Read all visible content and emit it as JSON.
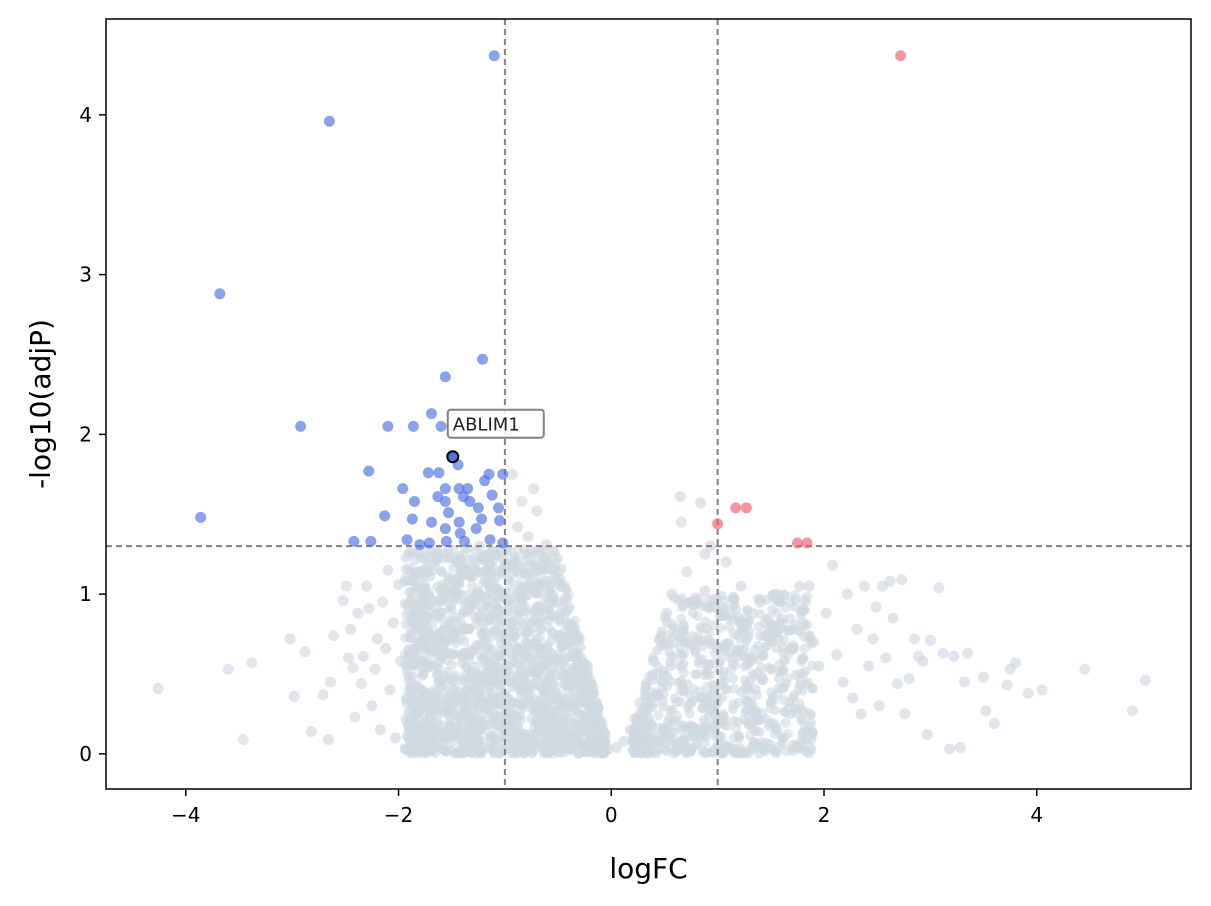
{
  "chart_data": {
    "type": "scatter",
    "title": "",
    "xlabel": "logFC",
    "ylabel": "-log10(adjP)",
    "xlim": [
      -4.75,
      5.45
    ],
    "ylim": [
      -0.22,
      4.6
    ],
    "xticks": [
      -4,
      -2,
      0,
      2,
      4
    ],
    "xtick_labels": [
      "−4",
      "−2",
      "0",
      "2",
      "4"
    ],
    "yticks": [
      0,
      1,
      2,
      3,
      4
    ],
    "ytick_labels": [
      "0",
      "1",
      "2",
      "3",
      "4"
    ],
    "grid": false,
    "thresholds": {
      "logFC": [
        -1,
        1
      ],
      "neg_log10_adjP": 1.3
    },
    "colors": {
      "up": "#f25a6e",
      "down": "#4f6ee0",
      "ns": "#cfd8e1",
      "threshold_line": "#808080"
    },
    "series": [
      {
        "name": "",
        "color": "#f25a6e",
        "points": [
          [
            2.72,
            4.37
          ],
          [
            1.0,
            1.44
          ],
          [
            1.17,
            1.54
          ],
          [
            1.27,
            1.54
          ],
          [
            1.75,
            1.32
          ],
          [
            1.84,
            1.32
          ]
        ]
      },
      {
        "name": "",
        "color": "#4f6ee0",
        "points": [
          [
            -1.1,
            4.37
          ],
          [
            -2.65,
            3.96
          ],
          [
            -3.68,
            2.88
          ],
          [
            -1.21,
            2.47
          ],
          [
            -1.56,
            2.36
          ],
          [
            -2.92,
            2.05
          ],
          [
            -2.1,
            2.05
          ],
          [
            -1.86,
            2.05
          ],
          [
            -1.6,
            2.05
          ],
          [
            -1.69,
            2.13
          ],
          [
            -1.49,
            1.86
          ],
          [
            -1.44,
            1.81
          ],
          [
            -2.28,
            1.77
          ],
          [
            -1.72,
            1.76
          ],
          [
            -1.62,
            1.76
          ],
          [
            -1.15,
            1.75
          ],
          [
            -1.02,
            1.75
          ],
          [
            -1.19,
            1.71
          ],
          [
            -1.56,
            1.66
          ],
          [
            -1.43,
            1.66
          ],
          [
            -1.35,
            1.66
          ],
          [
            -1.96,
            1.66
          ],
          [
            -1.12,
            1.62
          ],
          [
            -1.63,
            1.61
          ],
          [
            -1.39,
            1.61
          ],
          [
            -1.56,
            1.58
          ],
          [
            -1.85,
            1.58
          ],
          [
            -1.33,
            1.58
          ],
          [
            -1.25,
            1.54
          ],
          [
            -1.06,
            1.54
          ],
          [
            -3.86,
            1.48
          ],
          [
            -2.13,
            1.49
          ],
          [
            -1.53,
            1.51
          ],
          [
            -1.22,
            1.47
          ],
          [
            -1.05,
            1.46
          ],
          [
            -1.87,
            1.47
          ],
          [
            -1.69,
            1.45
          ],
          [
            -1.43,
            1.45
          ],
          [
            -1.56,
            1.41
          ],
          [
            -1.27,
            1.41
          ],
          [
            -1.42,
            1.38
          ],
          [
            -2.42,
            1.33
          ],
          [
            -2.26,
            1.33
          ],
          [
            -1.92,
            1.34
          ],
          [
            -1.71,
            1.32
          ],
          [
            -1.55,
            1.33
          ],
          [
            -1.38,
            1.33
          ],
          [
            -1.14,
            1.34
          ],
          [
            -1.02,
            1.32
          ],
          [
            -1.8,
            1.31
          ]
        ]
      }
    ],
    "ns_points": [
      [
        -4.26,
        0.41
      ],
      [
        -3.6,
        0.53
      ],
      [
        -3.38,
        0.57
      ],
      [
        -3.46,
        0.09
      ],
      [
        -3.02,
        0.72
      ],
      [
        -2.98,
        0.36
      ],
      [
        -2.88,
        0.64
      ],
      [
        -2.82,
        0.14
      ],
      [
        -2.71,
        0.37
      ],
      [
        -2.66,
        0.09
      ],
      [
        -2.64,
        0.45
      ],
      [
        -2.61,
        0.74
      ],
      [
        -2.52,
        0.96
      ],
      [
        -2.49,
        1.05
      ],
      [
        -2.47,
        0.6
      ],
      [
        -2.45,
        0.78
      ],
      [
        -2.43,
        0.54
      ],
      [
        -2.41,
        0.23
      ],
      [
        -2.38,
        0.88
      ],
      [
        -2.35,
        0.44
      ],
      [
        -2.33,
        0.61
      ],
      [
        -2.3,
        1.05
      ],
      [
        -2.28,
        0.91
      ],
      [
        -2.25,
        0.3
      ],
      [
        -2.22,
        0.53
      ],
      [
        -2.2,
        0.72
      ],
      [
        -2.17,
        0.15
      ],
      [
        -2.15,
        0.95
      ],
      [
        -2.12,
        0.66
      ],
      [
        -2.1,
        1.15
      ],
      [
        -2.08,
        0.4
      ],
      [
        -2.05,
        0.82
      ],
      [
        -2.03,
        0.1
      ],
      [
        -2.0,
        1.06
      ],
      [
        -1.98,
        0.58
      ],
      [
        -1.35,
        1.29
      ],
      [
        -1.24,
        1.3
      ],
      [
        -0.98,
        1.27
      ],
      [
        -0.93,
        1.75
      ],
      [
        -0.88,
        1.42
      ],
      [
        -0.84,
        1.58
      ],
      [
        -0.78,
        1.36
      ],
      [
        -0.73,
        1.66
      ],
      [
        -0.7,
        1.52
      ],
      [
        -0.61,
        1.31
      ],
      [
        -0.55,
        1.27
      ],
      [
        -0.48,
        1.05
      ],
      [
        -0.42,
        0.82
      ],
      [
        -0.37,
        0.61
      ],
      [
        -0.32,
        0.53
      ],
      [
        -0.28,
        0.47
      ],
      [
        -0.24,
        0.39
      ],
      [
        -0.2,
        0.3
      ],
      [
        -0.15,
        0.21
      ],
      [
        -0.11,
        0.14
      ],
      [
        -0.07,
        0.08
      ],
      [
        -0.03,
        0.03
      ],
      [
        0.05,
        0.04
      ],
      [
        0.12,
        0.08
      ],
      [
        0.18,
        0.15
      ],
      [
        0.22,
        0.22
      ],
      [
        0.27,
        0.32
      ],
      [
        0.33,
        0.44
      ],
      [
        0.4,
        0.58
      ],
      [
        0.46,
        0.72
      ],
      [
        0.52,
        0.88
      ],
      [
        0.57,
        1.0
      ],
      [
        0.65,
        1.61
      ],
      [
        0.84,
        1.57
      ],
      [
        0.66,
        1.45
      ],
      [
        0.88,
        1.25
      ],
      [
        0.71,
        1.14
      ],
      [
        0.93,
        1.3
      ],
      [
        0.79,
        0.95
      ],
      [
        0.88,
        1.02
      ],
      [
        1.08,
        1.2
      ],
      [
        1.15,
        0.98
      ],
      [
        1.22,
        1.05
      ],
      [
        1.33,
        0.88
      ],
      [
        1.4,
        0.95
      ],
      [
        1.47,
        0.75
      ],
      [
        1.55,
        1.0
      ],
      [
        1.61,
        0.82
      ],
      [
        1.69,
        0.66
      ],
      [
        1.77,
        1.05
      ],
      [
        1.8,
        0.9
      ],
      [
        1.86,
        1.05
      ],
      [
        1.9,
        0.7
      ],
      [
        1.95,
        0.55
      ],
      [
        2.02,
        0.88
      ],
      [
        2.08,
        1.18
      ],
      [
        2.12,
        0.62
      ],
      [
        2.18,
        0.45
      ],
      [
        2.22,
        1.0
      ],
      [
        2.27,
        0.35
      ],
      [
        2.31,
        0.78
      ],
      [
        2.35,
        0.25
      ],
      [
        2.38,
        1.05
      ],
      [
        2.42,
        0.55
      ],
      [
        2.46,
        0.72
      ],
      [
        2.49,
        0.92
      ],
      [
        2.52,
        0.3
      ],
      [
        2.55,
        1.05
      ],
      [
        2.58,
        0.6
      ],
      [
        2.62,
        1.08
      ],
      [
        2.65,
        0.85
      ],
      [
        2.69,
        0.44
      ],
      [
        2.73,
        1.09
      ],
      [
        2.76,
        0.25
      ],
      [
        2.8,
        0.47
      ],
      [
        2.85,
        0.72
      ],
      [
        2.89,
        0.61
      ],
      [
        2.93,
        0.58
      ],
      [
        2.97,
        0.12
      ],
      [
        3.0,
        0.71
      ],
      [
        3.08,
        1.04
      ],
      [
        3.12,
        0.63
      ],
      [
        3.18,
        0.03
      ],
      [
        3.22,
        0.61
      ],
      [
        3.28,
        0.04
      ],
      [
        3.32,
        0.45
      ],
      [
        3.35,
        0.63
      ],
      [
        3.5,
        0.48
      ],
      [
        3.52,
        0.27
      ],
      [
        3.6,
        0.19
      ],
      [
        3.72,
        0.43
      ],
      [
        3.75,
        0.53
      ],
      [
        3.8,
        0.57
      ],
      [
        3.92,
        0.38
      ],
      [
        4.05,
        0.4
      ],
      [
        4.45,
        0.53
      ],
      [
        4.9,
        0.27
      ],
      [
        5.02,
        0.46
      ]
    ],
    "annotation": {
      "label": "ABLIM1",
      "x": -1.49,
      "y": 1.86
    }
  }
}
